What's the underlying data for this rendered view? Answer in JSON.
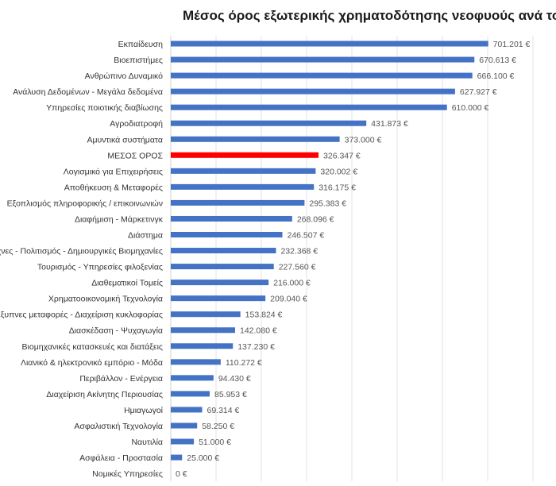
{
  "chart_data": {
    "type": "bar",
    "orientation": "horizontal",
    "title": "Μέσος όρος εξωτερικής χρηματοδότησης νεοφυούς ανά τομέα",
    "xlabel": "",
    "ylabel": "",
    "xlim": [
      0,
      800000
    ],
    "grid": true,
    "legend": "none",
    "colors": {
      "bar": "#4472C4",
      "highlight": "#FF0000",
      "grid": "#e3e3e3"
    },
    "categories": [
      "Εκπαίδευση",
      "Βιοεπιστήμες",
      "Ανθρώπινο Δυναμικό",
      "Ανάλυση Δεδομένων - Μεγάλα δεδομένα",
      "Υπηρεσίες ποιοτικής διαβίωσης",
      "Αγροδιατροφή",
      "Αμυντικά συστήματα",
      "ΜΕΣΟΣ ΟΡΟΣ",
      "Λογισμικό για Επιχειρήσεις",
      "Αποθήκευση & Μεταφορές",
      "Εξοπλισμός πληροφορικής / επικοινωνιών",
      "Διαφήμιση - Μάρκετινγκ",
      "Διάστημα",
      "Τέχνες - Πολιτισμός - Δημιουργικές Βιομηχανίες",
      "Τουρισμός - Υπηρεσίες φιλοξενίας",
      "Διαθεματικοί Τομείς",
      "Χρηματοοικονομική Τεχνολογία",
      "Έξυπνες μεταφορές - Διαχείριση κυκλοφορίας",
      "Διασκέδαση - Ψυχαγωγία",
      "Βιομηχανικές κατασκευές και διατάξεις",
      "Λιανικό & ηλεκτρονικό εμπόριο - Μόδα",
      "Περιβάλλον - Ενέργεια",
      "Διαχείριση Ακίνητης Περιουσίας",
      "Ημιαγωγοί",
      "Ασφαλιστική Τεχνολογία",
      "Ναυτιλία",
      "Ασφάλεια - Προστασία",
      "Νομικές Υπηρεσίες"
    ],
    "values": [
      701201,
      670613,
      666100,
      627927,
      610000,
      431873,
      373000,
      326347,
      320002,
      316175,
      295383,
      268096,
      246507,
      232368,
      227560,
      216000,
      209040,
      153824,
      142080,
      137230,
      110272,
      94430,
      85953,
      69314,
      58250,
      51000,
      25000,
      0
    ],
    "data_labels": [
      "701.201 €",
      "670.613 €",
      "666.100 €",
      "627.927 €",
      "610.000 €",
      "431.873 €",
      "373.000 €",
      "326.347 €",
      "320.002 €",
      "316.175 €",
      "295.383 €",
      "268.096 €",
      "246.507 €",
      "232.368 €",
      "227.560 €",
      "216.000 €",
      "209.040 €",
      "153.824 €",
      "142.080 €",
      "137.230 €",
      "110.272 €",
      "94.430 €",
      "85.953 €",
      "69.314 €",
      "58.250 €",
      "51.000 €",
      "25.000 €",
      "0 €"
    ],
    "highlight_category": "ΜΕΣΟΣ ΟΡΟΣ"
  }
}
